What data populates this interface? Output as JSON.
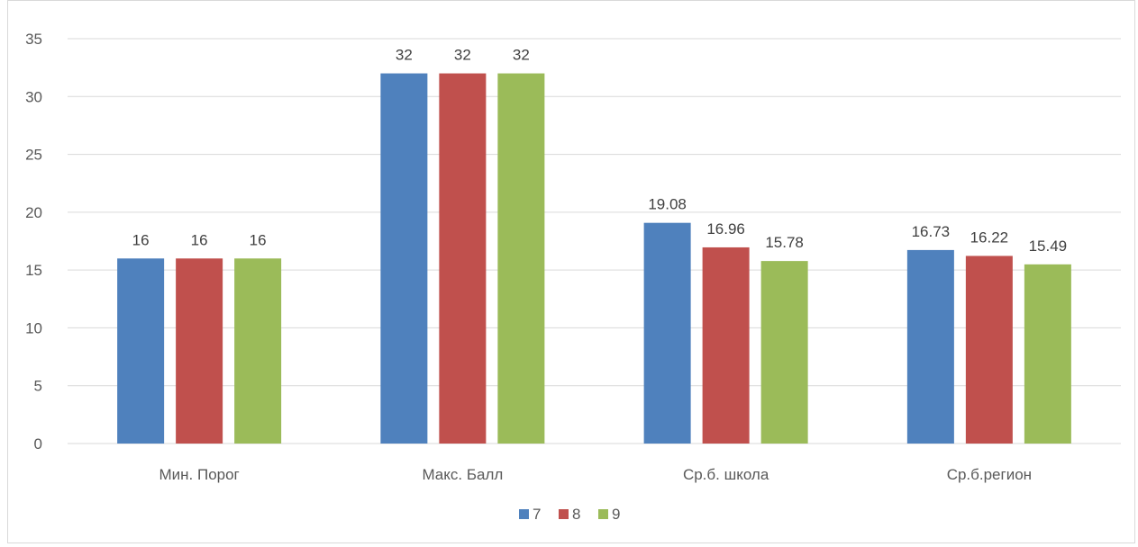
{
  "chart_data": {
    "type": "bar",
    "categories": [
      "Мин. Порог",
      "Макс. Балл",
      "Ср.б. школа",
      "Ср.б.регион"
    ],
    "series": [
      {
        "name": "7",
        "values": [
          16,
          32,
          19.08,
          16.73
        ],
        "color": "#4f81bd"
      },
      {
        "name": "8",
        "values": [
          16,
          32,
          16.96,
          16.22
        ],
        "color": "#c0504d"
      },
      {
        "name": "9",
        "values": [
          16,
          32,
          15.78,
          15.49
        ],
        "color": "#9bbb59"
      }
    ],
    "value_labels": [
      [
        "16",
        "32",
        "19.08",
        "16.73"
      ],
      [
        "16",
        "32",
        "16.96",
        "16.22"
      ],
      [
        "16",
        "32",
        "15.78",
        "15.49"
      ]
    ],
    "y_ticks": [
      "0",
      "5",
      "10",
      "15",
      "20",
      "25",
      "30",
      "35"
    ],
    "ylim": [
      0,
      35
    ],
    "grid": true,
    "legend_position": "bottom"
  }
}
